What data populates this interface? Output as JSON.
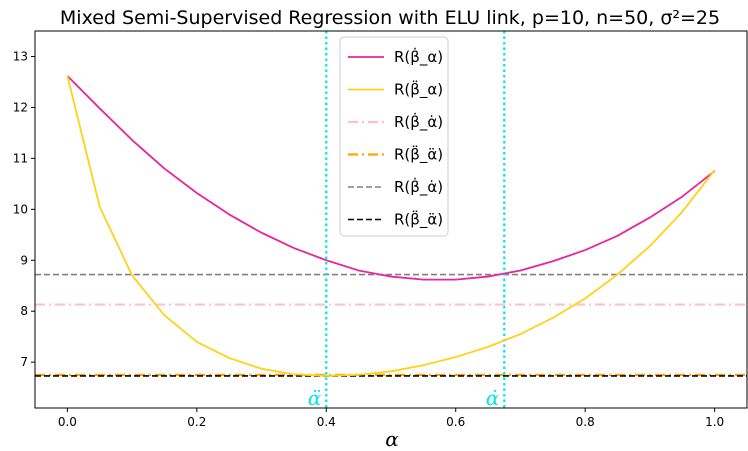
{
  "chart_data": {
    "type": "line",
    "title": "Mixed Semi-Supervised Regression with ELU link, p=10, n=50, σ²=25",
    "xlabel": "α",
    "ylabel": "",
    "xlim": [
      -0.05,
      1.05
    ],
    "ylim": [
      6.1,
      13.5
    ],
    "xticks": [
      0.0,
      0.2,
      0.4,
      0.6,
      0.8,
      1.0
    ],
    "xtick_labels": [
      "0.0",
      "0.2",
      "0.4",
      "0.6",
      "0.8",
      "1.0"
    ],
    "yticks": [
      7,
      8,
      9,
      10,
      11,
      12,
      13
    ],
    "ytick_labels": [
      "7",
      "8",
      "9",
      "10",
      "11",
      "12",
      "13"
    ],
    "grid": false,
    "legend_position": "top-center",
    "x": [
      0.0,
      0.05,
      0.1,
      0.15,
      0.2,
      0.25,
      0.3,
      0.35,
      0.4,
      0.45,
      0.5,
      0.55,
      0.6,
      0.65,
      0.7,
      0.75,
      0.8,
      0.85,
      0.9,
      0.95,
      1.0
    ],
    "series": [
      {
        "name": "R(β̇_α)",
        "color": "#e8259b",
        "style": "solid",
        "values": [
          12.62,
          11.98,
          11.36,
          10.8,
          10.32,
          9.9,
          9.54,
          9.24,
          9.0,
          8.8,
          8.68,
          8.62,
          8.62,
          8.68,
          8.8,
          8.98,
          9.2,
          9.48,
          9.84,
          10.25,
          10.75
        ]
      },
      {
        "name": "R(β̈_α)",
        "color": "#ffd21a",
        "style": "solid",
        "values": [
          12.62,
          10.05,
          8.7,
          7.92,
          7.4,
          7.08,
          6.87,
          6.76,
          6.73,
          6.75,
          6.82,
          6.94,
          7.1,
          7.3,
          7.55,
          7.87,
          8.25,
          8.72,
          9.28,
          9.95,
          10.77
        ]
      }
    ],
    "hlines": [
      {
        "name": "R(β̇_α̇)",
        "y": 8.13,
        "color": "#ffbfcb",
        "style": "dashdot"
      },
      {
        "name": "R(β̈_α̈)",
        "y": 6.75,
        "color": "#ffa500",
        "style": "dashdot"
      },
      {
        "name": "R(β̇_α̇)",
        "y": 8.72,
        "color": "#808080",
        "style": "dashed"
      },
      {
        "name": "R(β̈_α̈)",
        "y": 6.73,
        "color": "#000000",
        "style": "dashed"
      }
    ],
    "vlines": [
      {
        "x": 0.4,
        "label": "α̈",
        "color": "#00e5ee"
      },
      {
        "x": 0.675,
        "label": "α̇",
        "color": "#00e5ee"
      }
    ]
  }
}
